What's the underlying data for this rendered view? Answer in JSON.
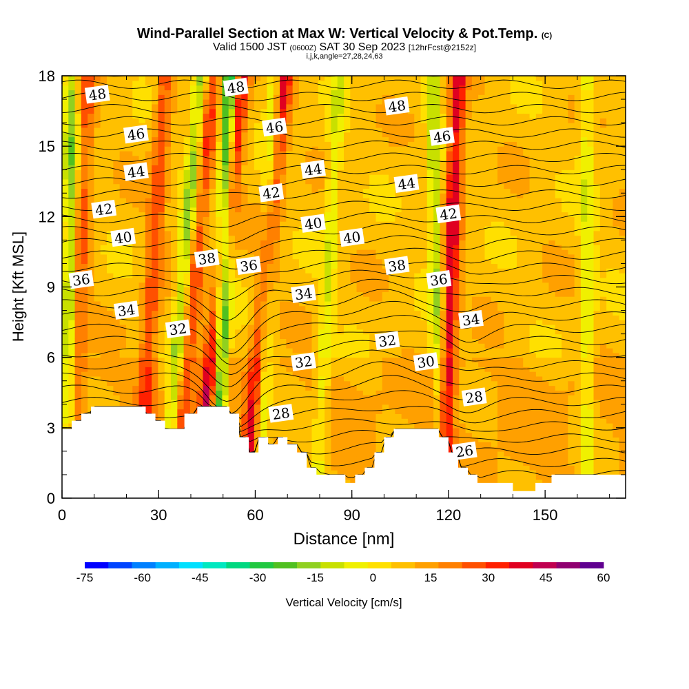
{
  "title": {
    "main": "Wind-Parallel Section at Max W: Vertical Velocity & Pot.Temp.",
    "copyright": "(C)",
    "valid_prefix": "Valid 1500 JST",
    "valid_utc": "(0600Z)",
    "valid_date": "SAT 30 Sep 2023",
    "forecast": "[12hrFcst@2152z]",
    "indices": "i,j,k,angle=27,28,24,63"
  },
  "chart_data": {
    "type": "heatmap",
    "xlabel": "Distance [nm]",
    "ylabel": "Height [Kft MSL]",
    "xlim": [
      0,
      175
    ],
    "ylim": [
      0,
      18
    ],
    "x_ticks": [
      0,
      30,
      60,
      90,
      120,
      150
    ],
    "y_ticks": [
      0,
      3,
      6,
      9,
      12,
      15,
      18
    ],
    "colorbar": {
      "label": "Vertical Velocity [cm/s]",
      "ticks": [
        -75,
        -60,
        -45,
        -30,
        -15,
        0,
        15,
        30,
        45,
        60
      ],
      "range": [
        -75,
        60
      ],
      "colors": [
        "#0000ff",
        "#0044ff",
        "#0080ff",
        "#00b0ff",
        "#00e0ff",
        "#00e8c0",
        "#00d880",
        "#20c840",
        "#50c020",
        "#90d020",
        "#c8e000",
        "#f0f000",
        "#ffe000",
        "#ffc000",
        "#ffa000",
        "#ff8000",
        "#ff5000",
        "#ff2000",
        "#e00020",
        "#c00050",
        "#900070",
        "#600090"
      ]
    },
    "theta_contours": {
      "label_values": [
        48,
        46,
        44,
        42,
        40,
        38,
        36,
        34,
        32,
        30,
        28,
        26
      ],
      "labels": [
        {
          "text": "48",
          "x": 11,
          "y": 17.2
        },
        {
          "text": "48",
          "x": 54,
          "y": 17.5
        },
        {
          "text": "48",
          "x": 104,
          "y": 16.7
        },
        {
          "text": "46",
          "x": 23,
          "y": 15.5
        },
        {
          "text": "46",
          "x": 66,
          "y": 15.8
        },
        {
          "text": "46",
          "x": 118,
          "y": 15.4
        },
        {
          "text": "44",
          "x": 23,
          "y": 13.9
        },
        {
          "text": "44",
          "x": 78,
          "y": 14.0
        },
        {
          "text": "44",
          "x": 107,
          "y": 13.4
        },
        {
          "text": "42",
          "x": 13,
          "y": 12.3
        },
        {
          "text": "42",
          "x": 65,
          "y": 13.0
        },
        {
          "text": "42",
          "x": 120,
          "y": 12.1
        },
        {
          "text": "40",
          "x": 19,
          "y": 11.1
        },
        {
          "text": "40",
          "x": 78,
          "y": 11.7
        },
        {
          "text": "40",
          "x": 90,
          "y": 11.1
        },
        {
          "text": "38",
          "x": 45,
          "y": 10.2
        },
        {
          "text": "38",
          "x": 104,
          "y": 9.9
        },
        {
          "text": "36",
          "x": 6,
          "y": 9.3
        },
        {
          "text": "36",
          "x": 58,
          "y": 9.9
        },
        {
          "text": "36",
          "x": 117,
          "y": 9.3
        },
        {
          "text": "34",
          "x": 20,
          "y": 8.0
        },
        {
          "text": "34",
          "x": 75,
          "y": 8.7
        },
        {
          "text": "34",
          "x": 127,
          "y": 7.6
        },
        {
          "text": "32",
          "x": 36,
          "y": 7.2
        },
        {
          "text": "32",
          "x": 75,
          "y": 5.8
        },
        {
          "text": "32",
          "x": 101,
          "y": 6.7
        },
        {
          "text": "30",
          "x": 113,
          "y": 5.8
        },
        {
          "text": "28",
          "x": 68,
          "y": 3.6
        },
        {
          "text": "28",
          "x": 128,
          "y": 4.3
        },
        {
          "text": "26",
          "x": 125,
          "y": 2.0
        }
      ]
    },
    "terrain_kft": [
      [
        0,
        2.95
      ],
      [
        3,
        2.95
      ],
      [
        3,
        3.3
      ],
      [
        6,
        3.3
      ],
      [
        6,
        3.6
      ],
      [
        9,
        3.6
      ],
      [
        9,
        3.9
      ],
      [
        26,
        3.9
      ],
      [
        26,
        3.6
      ],
      [
        29,
        3.6
      ],
      [
        29,
        3.3
      ],
      [
        32,
        3.3
      ],
      [
        32,
        2.95
      ],
      [
        38,
        2.95
      ],
      [
        38,
        3.6
      ],
      [
        42,
        3.6
      ],
      [
        42,
        3.9
      ],
      [
        52,
        3.9
      ],
      [
        52,
        3.6
      ],
      [
        55,
        3.6
      ],
      [
        55,
        2.6
      ],
      [
        58,
        2.6
      ],
      [
        58,
        1.95
      ],
      [
        61,
        1.95
      ],
      [
        61,
        2.6
      ],
      [
        64,
        2.6
      ],
      [
        64,
        2.3
      ],
      [
        67,
        2.3
      ],
      [
        67,
        2.6
      ],
      [
        70,
        2.6
      ],
      [
        70,
        2.3
      ],
      [
        73,
        2.3
      ],
      [
        73,
        1.95
      ],
      [
        76,
        1.95
      ],
      [
        76,
        1.3
      ],
      [
        79,
        1.3
      ],
      [
        79,
        1.0
      ],
      [
        88,
        1.0
      ],
      [
        88,
        0.65
      ],
      [
        91,
        0.65
      ],
      [
        91,
        1.0
      ],
      [
        94,
        1.0
      ],
      [
        94,
        1.3
      ],
      [
        97,
        1.3
      ],
      [
        97,
        1.95
      ],
      [
        100,
        1.95
      ],
      [
        100,
        2.6
      ],
      [
        103,
        2.6
      ],
      [
        103,
        2.95
      ],
      [
        117,
        2.95
      ],
      [
        117,
        2.6
      ],
      [
        120,
        2.6
      ],
      [
        120,
        1.95
      ],
      [
        123,
        1.95
      ],
      [
        123,
        1.3
      ],
      [
        126,
        1.3
      ],
      [
        126,
        1.0
      ],
      [
        129,
        1.0
      ],
      [
        129,
        0.65
      ],
      [
        140,
        0.65
      ],
      [
        140,
        0.3
      ],
      [
        147,
        0.3
      ],
      [
        147,
        0.65
      ],
      [
        152,
        0.65
      ],
      [
        152,
        1.0
      ],
      [
        175,
        1.0
      ]
    ],
    "updrafts": [
      {
        "x_top": 56,
        "x_bot": 42,
        "w": 32
      },
      {
        "x_top": 47,
        "x_bot": 35,
        "w": 20
      },
      {
        "x_top": 69,
        "x_bot": 57,
        "w": 30
      },
      {
        "x_top": 123,
        "x_bot": 118,
        "w": 32
      },
      {
        "x_top": 32,
        "x_bot": 24,
        "w": 20
      },
      {
        "x_top": 8,
        "x_bot": 3,
        "w": 18
      }
    ],
    "downdrafts": [
      {
        "x_top": 52,
        "x_bot": 48,
        "w": -45
      },
      {
        "x_top": 3,
        "x_bot": 2,
        "w": -25
      },
      {
        "x_top": 43,
        "x_bot": 32,
        "w": -25
      },
      {
        "x_top": 66,
        "x_bot": 61,
        "w": -22
      },
      {
        "x_top": 86,
        "x_bot": 79,
        "w": -15
      },
      {
        "x_top": 115,
        "x_bot": 118,
        "w": -22
      },
      {
        "x_top": 163,
        "x_bot": 163,
        "w": -15
      }
    ]
  }
}
